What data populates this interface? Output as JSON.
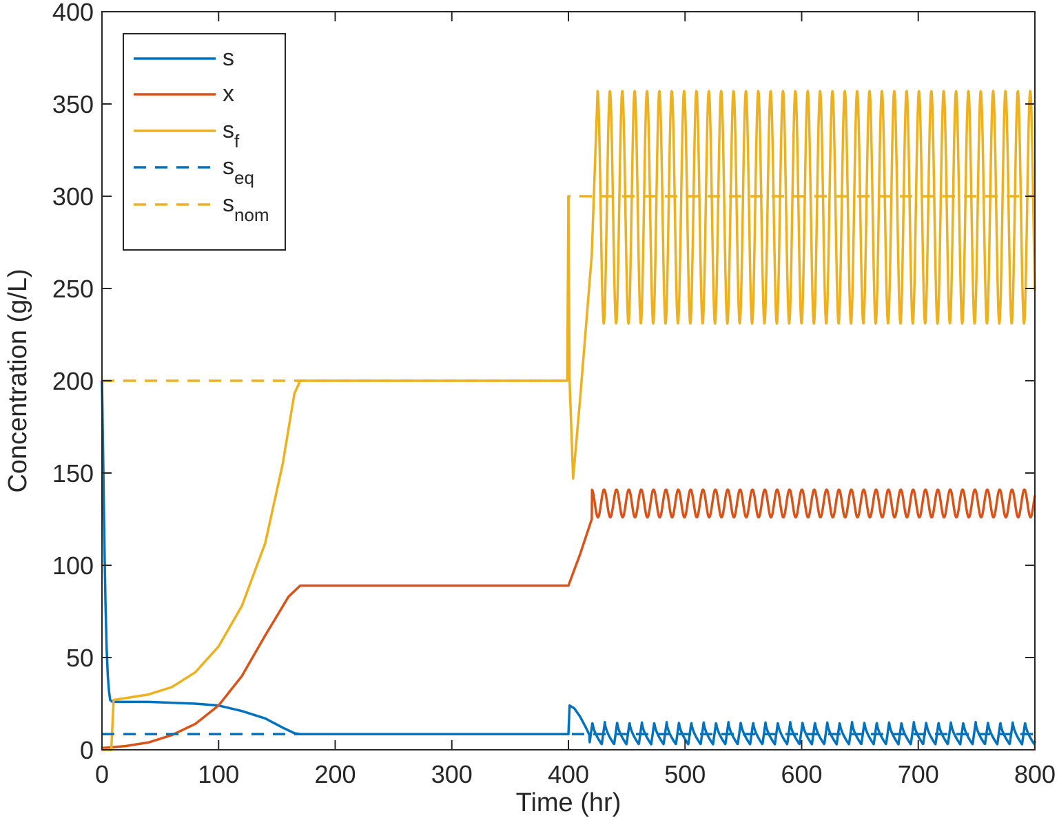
{
  "chart_data": {
    "type": "line",
    "title": "",
    "xlabel": "Time (hr)",
    "ylabel": "Concentration (g/L)",
    "xlim": [
      0,
      800
    ],
    "ylim": [
      0,
      400
    ],
    "xticks": [
      0,
      100,
      200,
      300,
      400,
      500,
      600,
      700,
      800
    ],
    "yticks": [
      0,
      50,
      100,
      150,
      200,
      250,
      300,
      350,
      400
    ],
    "grid": false,
    "legend_position": "top-left",
    "colors": {
      "s": "#0072BD",
      "x": "#D95319",
      "s_f": "#EDB120",
      "axis": "#262626"
    },
    "legend": [
      {
        "key": "s",
        "base": "s",
        "sub": "",
        "style": "solid",
        "color": "#0072BD"
      },
      {
        "key": "x",
        "base": "x",
        "sub": "",
        "style": "solid",
        "color": "#D95319"
      },
      {
        "key": "s_f",
        "base": "s",
        "sub": "f",
        "style": "solid",
        "color": "#EDB120"
      },
      {
        "key": "s_eq",
        "base": "s",
        "sub": "eq",
        "style": "dashed",
        "color": "#0072BD"
      },
      {
        "key": "s_nom",
        "base": "s",
        "sub": "nom",
        "style": "dashed",
        "color": "#EDB120"
      }
    ],
    "series": [
      {
        "name": "s",
        "style": "solid",
        "color": "#0072BD",
        "points": [
          [
            0,
            200
          ],
          [
            1,
            160
          ],
          [
            2,
            115
          ],
          [
            3,
            80
          ],
          [
            4,
            55
          ],
          [
            5,
            40
          ],
          [
            6,
            32
          ],
          [
            7,
            27
          ],
          [
            9,
            26
          ],
          [
            40,
            26
          ],
          [
            80,
            25
          ],
          [
            100,
            24
          ],
          [
            120,
            21
          ],
          [
            140,
            17
          ],
          [
            155,
            12
          ],
          [
            165,
            9
          ],
          [
            170,
            8.5
          ],
          [
            400,
            8.5
          ],
          [
            401,
            24
          ],
          [
            405,
            22.5
          ],
          [
            410,
            18
          ],
          [
            415,
            12
          ],
          [
            418,
            8
          ]
        ],
        "oscillation": {
          "t_start": 418,
          "t_end": 800,
          "period": 10.6,
          "min": 3,
          "max": 15,
          "shape": "sawtooth-up"
        }
      },
      {
        "name": "x",
        "style": "solid",
        "color": "#D95319",
        "points": [
          [
            0,
            1
          ],
          [
            20,
            2
          ],
          [
            40,
            4
          ],
          [
            60,
            8
          ],
          [
            80,
            14
          ],
          [
            100,
            24
          ],
          [
            120,
            40
          ],
          [
            140,
            62
          ],
          [
            160,
            83
          ],
          [
            170,
            89
          ],
          [
            400,
            89
          ],
          [
            410,
            106
          ],
          [
            420,
            125
          ]
        ],
        "oscillation": {
          "t_start": 420,
          "t_end": 800,
          "period": 10.6,
          "min": 126,
          "max": 141,
          "shape": "sine"
        }
      },
      {
        "name": "s_f",
        "style": "solid",
        "color": "#EDB120",
        "points": [
          [
            0,
            0
          ],
          [
            8,
            0
          ],
          [
            10,
            27
          ],
          [
            20,
            28
          ],
          [
            40,
            30
          ],
          [
            60,
            34
          ],
          [
            80,
            42
          ],
          [
            100,
            56
          ],
          [
            120,
            78
          ],
          [
            140,
            112
          ],
          [
            155,
            155
          ],
          [
            165,
            193
          ],
          [
            170,
            200
          ],
          [
            399,
            200
          ],
          [
            400,
            300
          ],
          [
            401,
            200
          ],
          [
            404,
            147
          ],
          [
            410,
            190
          ],
          [
            420,
            268
          ],
          [
            425,
            357
          ]
        ],
        "oscillation": {
          "t_start": 425,
          "t_end": 800,
          "period": 10.6,
          "min": 231,
          "max": 357,
          "shape": "sine"
        }
      },
      {
        "name": "s_eq",
        "style": "dashed",
        "color": "#0072BD",
        "points": [
          [
            0,
            8.5
          ],
          [
            800,
            8.5
          ]
        ]
      },
      {
        "name": "s_nom",
        "style": "dashed",
        "color": "#EDB120",
        "points": [
          [
            0,
            200
          ],
          [
            400,
            200
          ],
          [
            400,
            300
          ],
          [
            800,
            300
          ]
        ]
      }
    ]
  }
}
